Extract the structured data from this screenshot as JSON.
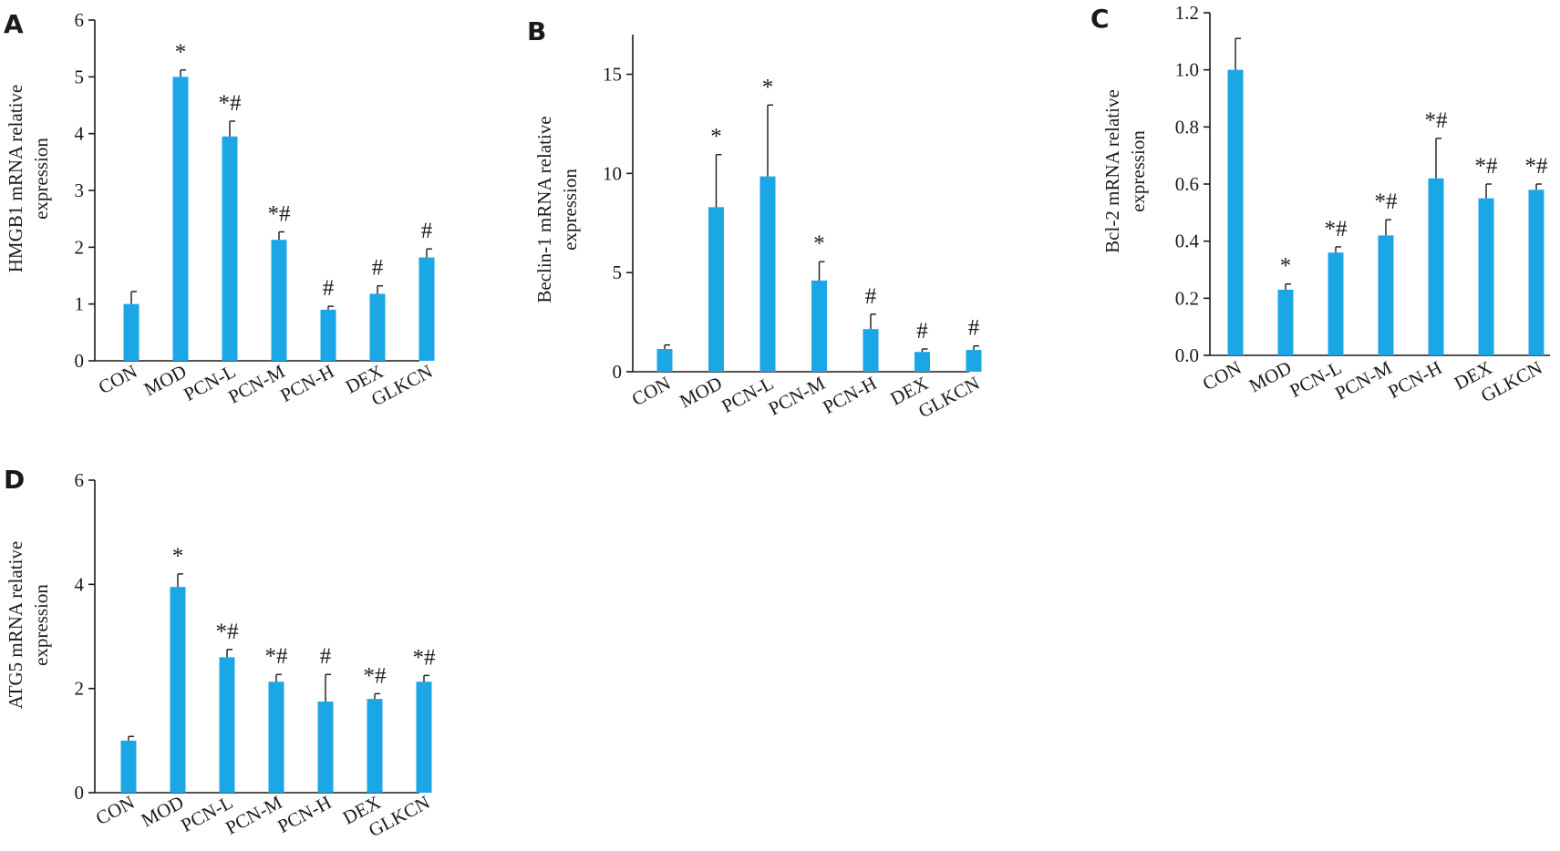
{
  "chart_data": [
    {
      "panel": "A",
      "type": "bar",
      "ylabel": [
        "HMGB1 mRNA relative",
        "expression"
      ],
      "categories": [
        "CON",
        "MOD",
        "PCN-L",
        "PCN-M",
        "PCN-H",
        "DEX",
        "GLKCN"
      ],
      "values": [
        1.0,
        5.0,
        3.95,
        2.13,
        0.9,
        1.18,
        1.82
      ],
      "errors": [
        0.22,
        0.12,
        0.27,
        0.14,
        0.06,
        0.14,
        0.15
      ],
      "significance": [
        "",
        "*",
        "*#",
        "*#",
        "#",
        "#",
        "#"
      ],
      "ylim": [
        0,
        6
      ],
      "yticks": [
        "0",
        "1",
        "2",
        "3",
        "4",
        "5",
        "6"
      ],
      "ytick_values": [
        0,
        1,
        2,
        3,
        4,
        5,
        6
      ]
    },
    {
      "panel": "B",
      "type": "bar",
      "ylabel": [
        "Beclin-1 mRNA  relative",
        "expression"
      ],
      "categories": [
        "CON",
        "MOD",
        "PCN-L",
        "PCN-M",
        "PCN-H",
        "DEX",
        "GLKCN"
      ],
      "values": [
        1.15,
        8.3,
        9.85,
        4.6,
        2.15,
        1.0,
        1.1
      ],
      "errors": [
        0.2,
        2.65,
        3.6,
        0.95,
        0.75,
        0.15,
        0.2
      ],
      "significance": [
        "",
        "*",
        "*",
        "*",
        "#",
        "#",
        "#"
      ],
      "ylim": [
        0,
        17
      ],
      "yticks": [
        "0",
        "5",
        "10",
        "15"
      ],
      "ytick_values": [
        0,
        5,
        10,
        15
      ]
    },
    {
      "panel": "C",
      "type": "bar",
      "ylabel": [
        "Bcl-2 mRNA relative",
        "expression"
      ],
      "categories": [
        "CON",
        "MOD",
        "PCN-L",
        "PCN-M",
        "PCN-H",
        "DEX",
        "GLKCN"
      ],
      "values": [
        1.0,
        0.23,
        0.36,
        0.42,
        0.62,
        0.55,
        0.58
      ],
      "errors": [
        0.11,
        0.02,
        0.02,
        0.055,
        0.14,
        0.05,
        0.02
      ],
      "significance": [
        "",
        "*",
        "*#",
        "*#",
        "*#",
        "*#",
        "*#"
      ],
      "ylim": [
        0,
        1.2
      ],
      "yticks": [
        "0.0",
        "0.2",
        "0.4",
        "0.6",
        "0.8",
        "1.0",
        "1.2"
      ],
      "ytick_values": [
        0,
        0.2,
        0.4,
        0.6,
        0.8,
        1.0,
        1.2
      ]
    },
    {
      "panel": "D",
      "type": "bar",
      "ylabel": [
        "ATG5 mRNA relative",
        "expression"
      ],
      "categories": [
        "CON",
        "MOD",
        "PCN-L",
        "PCN-M",
        "PCN-H",
        "DEX",
        "GLKCN"
      ],
      "values": [
        1.0,
        3.95,
        2.6,
        2.13,
        1.75,
        1.8,
        2.13
      ],
      "errors": [
        0.08,
        0.25,
        0.15,
        0.14,
        0.52,
        0.1,
        0.12
      ],
      "significance": [
        "",
        "*",
        "*#",
        "*#",
        "#",
        "*#",
        "*#"
      ],
      "ylim": [
        0,
        6
      ],
      "yticks": [
        "0",
        "2",
        "4",
        "6"
      ],
      "ytick_values": [
        0,
        2,
        4,
        6
      ]
    }
  ],
  "style": {
    "bar_color": "#1ba6e6",
    "axis_color": "#1a1a1a"
  }
}
